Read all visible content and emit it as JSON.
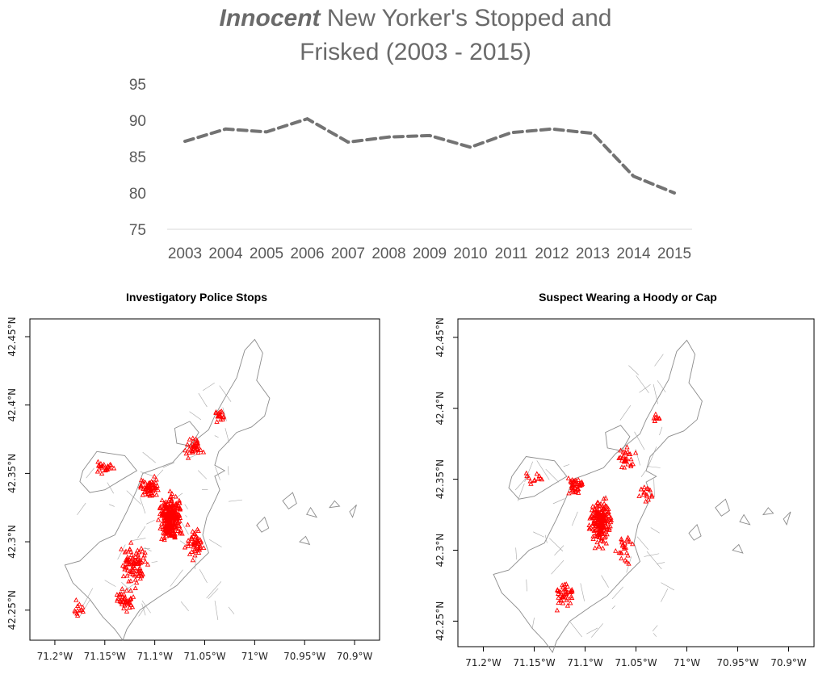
{
  "colors": {
    "line": "#737373",
    "map_border": "#8c8c8c",
    "points": "#ff0000",
    "text": "#6a6a6a"
  },
  "chart_data": [
    {
      "type": "line",
      "title_emphasis": "Innocent",
      "title_rest": " New Yorker's Stopped and",
      "title_line2": "Frisked (2003 - 2015)",
      "xlabel": "",
      "ylabel": "",
      "x": [
        "2003",
        "2004",
        "2005",
        "2006",
        "2007",
        "2008",
        "2009",
        "2010",
        "2011",
        "2012",
        "2013",
        "2014",
        "2015"
      ],
      "series": [
        {
          "values": [
            87.1,
            88.8,
            88.4,
            90.2,
            87.0,
            87.7,
            87.9,
            86.3,
            88.3,
            88.8,
            88.2,
            82.3,
            80.0
          ]
        }
      ],
      "ylim": [
        75,
        95
      ],
      "yticks": [
        75,
        80,
        85,
        90,
        95
      ],
      "style": "dashed",
      "grid": false
    },
    {
      "type": "scatter",
      "title": "Investigatory Police Stops",
      "xticks": [
        "71.2°W",
        "71.15°W",
        "71.1°W",
        "71.05°W",
        "71°W",
        "70.95°W",
        "70.9°W"
      ],
      "yticks": [
        "42.25°N",
        "42.3°N",
        "42.35°N",
        "42.4°N",
        "42.45°N"
      ],
      "xlim": [
        -71.225,
        -70.875
      ],
      "ylim": [
        42.228,
        42.463
      ],
      "marker": "triangle",
      "n_points": 600
    },
    {
      "type": "scatter",
      "title": "Suspect Wearing a Hoody or Cap",
      "xticks": [
        "71.2°W",
        "71.15°W",
        "71.1°W",
        "71.05°W",
        "71°W",
        "70.95°W",
        "70.9°W"
      ],
      "yticks": [
        "42.25°N",
        "42.3°N",
        "42.35°N",
        "42.4°N",
        "42.45°N"
      ],
      "xlim": [
        -71.225,
        -70.875
      ],
      "ylim": [
        42.232,
        42.463
      ],
      "marker": "triangle",
      "n_points": 360
    }
  ]
}
